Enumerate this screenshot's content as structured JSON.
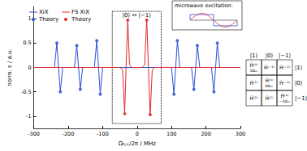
{
  "chart_data": {
    "type": "line",
    "x_label": "Ω₀,ₖ/2π / MHz",
    "y_label": "norm. ε / a.u.",
    "xlim": [
      -300,
      300
    ],
    "xticks": [
      -300,
      -200,
      -100,
      0,
      100,
      200,
      300
    ],
    "ylim": [
      -1.25,
      1.25
    ],
    "yticks": [
      -1,
      -0.5,
      0,
      0.5,
      1
    ],
    "grid": false,
    "legend": "top-left",
    "series": [
      {
        "name": "XiX",
        "color": "#2b50d8",
        "type": "line",
        "line_style": "solid",
        "x": [
          -300,
          -240,
          -233,
          -228,
          -223,
          -216,
          -182,
          -175,
          -170,
          -165,
          -158,
          -124,
          -117,
          -112,
          -107,
          -100,
          100,
          107,
          112,
          117,
          124,
          158,
          165,
          170,
          175,
          182,
          216,
          223,
          228,
          233,
          240,
          300
        ],
        "values": [
          0,
          0,
          0.5,
          0,
          -0.5,
          0,
          0,
          0.45,
          0,
          -0.45,
          0,
          0,
          0.55,
          0,
          -0.55,
          0,
          0,
          -0.55,
          0,
          0.55,
          0,
          0,
          -0.45,
          0,
          0.45,
          0,
          0,
          -0.5,
          0,
          0.5,
          0,
          0
        ]
      },
      {
        "name": "FS XiX",
        "color": "#e3262c",
        "type": "line",
        "line_style": "solid",
        "x": [
          -300,
          -50,
          -42,
          -36,
          -32,
          -27,
          -22,
          -15,
          15,
          22,
          28,
          33,
          38,
          44,
          52,
          300
        ],
        "values": [
          0,
          0,
          -0.05,
          -0.95,
          0,
          1,
          0.05,
          0,
          0,
          0.05,
          1,
          0,
          -1,
          -0.05,
          0,
          0
        ]
      },
      {
        "name": "Theory",
        "color": "#2b50d8",
        "type": "scatter",
        "marker": "circle",
        "x": [
          -233,
          -223,
          -175,
          -165,
          -117,
          -107,
          107,
          117,
          165,
          175,
          223,
          233
        ],
        "values": [
          0.5,
          -0.5,
          0.45,
          -0.45,
          0.55,
          -0.55,
          -0.55,
          0.55,
          -0.45,
          0.45,
          -0.5,
          0.5
        ]
      },
      {
        "name": "Theory",
        "color": "#e3262c",
        "type": "scatter",
        "marker": "circle",
        "x": [
          -36,
          -27,
          28,
          38
        ],
        "values": [
          -0.95,
          0.97,
          0.97,
          -0.97
        ]
      }
    ],
    "annotations": [
      {
        "text": "|0⟩ ↔ |−1⟩",
        "x": [
          -72,
          70
        ],
        "y": [
          -1.15,
          1.15
        ]
      }
    ]
  },
  "inset": {
    "title": "microwave excitation:"
  },
  "matrix": {
    "col_labels": [
      "|1⟩",
      "|0⟩",
      "|−1⟩"
    ],
    "row_labels": [
      "|1⟩",
      "|0⟩",
      "|−1⟩"
    ],
    "cells": [
      [
        {
          "op": "Ĥ⁽⁰⁾",
          "sub": "1Ω₀ₖ"
        },
        {
          "op": "Ĥ⁽⁻¹⁾"
        },
        {
          "op": "Ĥ⁽⁻²⁾"
        }
      ],
      [
        {
          "op": "Ĥ⁽¹⁾"
        },
        {
          "op": "Ĥ⁽⁰⁾",
          "sub": "0Ω₀ₖ"
        },
        {
          "op": "Ĥ⁽⁻¹⁾"
        }
      ],
      [
        {
          "op": "Ĥ⁽²⁾"
        },
        {
          "op": "Ĥ⁽¹⁾"
        },
        {
          "op": "Ĥ⁽⁰⁾",
          "sub": "−1Ω₀ₖ"
        }
      ]
    ]
  }
}
